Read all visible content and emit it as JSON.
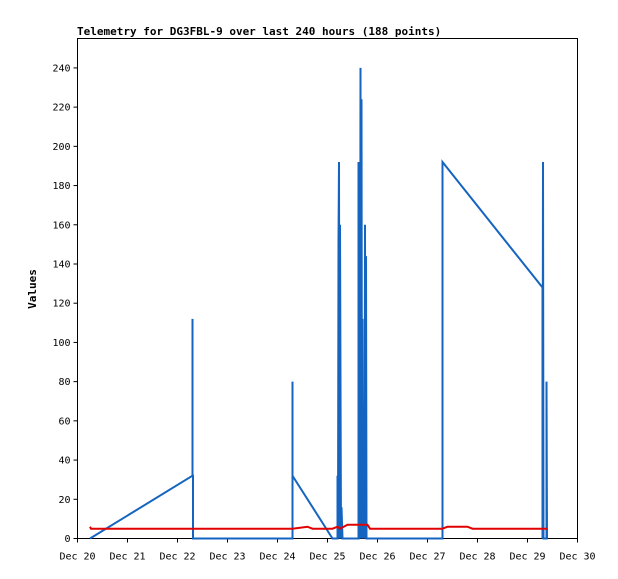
{
  "chart_data": {
    "type": "line",
    "title": "Telemetry for DG3FBL-9 over last 240 hours (188 points)",
    "xlabel": "",
    "ylabel": "Values",
    "x_ticks": [
      "Dec 20",
      "Dec 21",
      "Dec 22",
      "Dec 23",
      "Dec 24",
      "Dec 25",
      "Dec 26",
      "Dec 27",
      "Dec 28",
      "Dec 29",
      "Dec 30"
    ],
    "x_range_days": [
      0,
      10
    ],
    "x_origin_label": "Dec 20",
    "ylim": [
      0,
      255
    ],
    "y_ticks": [
      0,
      20,
      40,
      60,
      80,
      100,
      120,
      140,
      160,
      180,
      200,
      220,
      240
    ],
    "grid": false,
    "legend": "none",
    "series": [
      {
        "color": "#1565C0",
        "points": [
          [
            0.25,
            0
          ],
          [
            2.3,
            32
          ],
          [
            2.3,
            112
          ],
          [
            2.3,
            32
          ],
          [
            2.31,
            32
          ],
          [
            2.31,
            0
          ],
          [
            4.3,
            0
          ],
          [
            4.3,
            80
          ],
          [
            4.3,
            32
          ],
          [
            5.1,
            0
          ],
          [
            5.2,
            0
          ],
          [
            5.2,
            32
          ],
          [
            5.21,
            0
          ],
          [
            5.22,
            152
          ],
          [
            5.23,
            192
          ],
          [
            5.24,
            0
          ],
          [
            5.25,
            160
          ],
          [
            5.27,
            0
          ],
          [
            5.28,
            16
          ],
          [
            5.3,
            0
          ],
          [
            5.62,
            0
          ],
          [
            5.62,
            192
          ],
          [
            5.63,
            0
          ],
          [
            5.64,
            112
          ],
          [
            5.65,
            0
          ],
          [
            5.66,
            240
          ],
          [
            5.67,
            0
          ],
          [
            5.68,
            224
          ],
          [
            5.69,
            0
          ],
          [
            5.7,
            112
          ],
          [
            5.71,
            0
          ],
          [
            5.73,
            64
          ],
          [
            5.74,
            0
          ],
          [
            5.75,
            160
          ],
          [
            5.76,
            0
          ],
          [
            5.77,
            144
          ],
          [
            5.78,
            0
          ],
          [
            7.3,
            0
          ],
          [
            7.3,
            192
          ],
          [
            9.3,
            128
          ],
          [
            9.3,
            0
          ],
          [
            9.31,
            192
          ],
          [
            9.32,
            0
          ],
          [
            9.38,
            0
          ],
          [
            9.38,
            80
          ],
          [
            9.39,
            0
          ]
        ]
      },
      {
        "color": "#E00000",
        "points": [
          [
            0.25,
            6
          ],
          [
            0.27,
            5
          ],
          [
            4.3,
            5
          ],
          [
            4.6,
            6
          ],
          [
            4.7,
            5
          ],
          [
            5.1,
            5
          ],
          [
            5.2,
            6
          ],
          [
            5.25,
            5
          ],
          [
            5.4,
            7
          ],
          [
            5.8,
            7
          ],
          [
            5.85,
            5
          ],
          [
            7.3,
            5
          ],
          [
            7.4,
            6
          ],
          [
            7.8,
            6
          ],
          [
            7.9,
            5
          ],
          [
            8.9,
            5
          ],
          [
            9.0,
            5
          ],
          [
            9.4,
            5
          ]
        ]
      }
    ]
  }
}
